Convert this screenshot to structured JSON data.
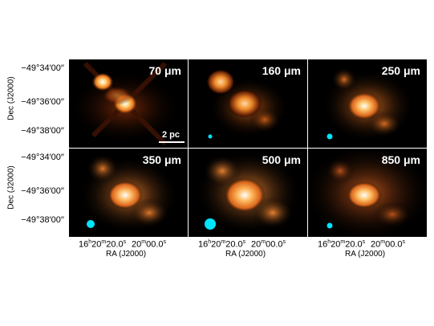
{
  "panels": [
    {
      "label": "70 μm",
      "beam_size": "small"
    },
    {
      "label": "160 μm",
      "beam_size": "small"
    },
    {
      "label": "250 μm",
      "beam_size": "medium"
    },
    {
      "label": "350 μm",
      "beam_size": "medium"
    },
    {
      "label": "500 μm",
      "beam_size": "large"
    },
    {
      "label": "850 μm",
      "beam_size": "medium"
    }
  ],
  "scale_bar": {
    "label": "2 pc"
  },
  "axes": {
    "dec_title": "Dec (J2000)",
    "ra_title": "RA (J2000)",
    "dec_ticks": [
      "−49°34′00′′",
      "−49°36′00′′",
      "−49°38′00′′"
    ],
    "ra_ticks": [
      "16h20m20.0s",
      "20m00.0s"
    ]
  },
  "colors": {
    "beam": "#00e5ff",
    "colormap": "black-orange-yellow-white"
  }
}
